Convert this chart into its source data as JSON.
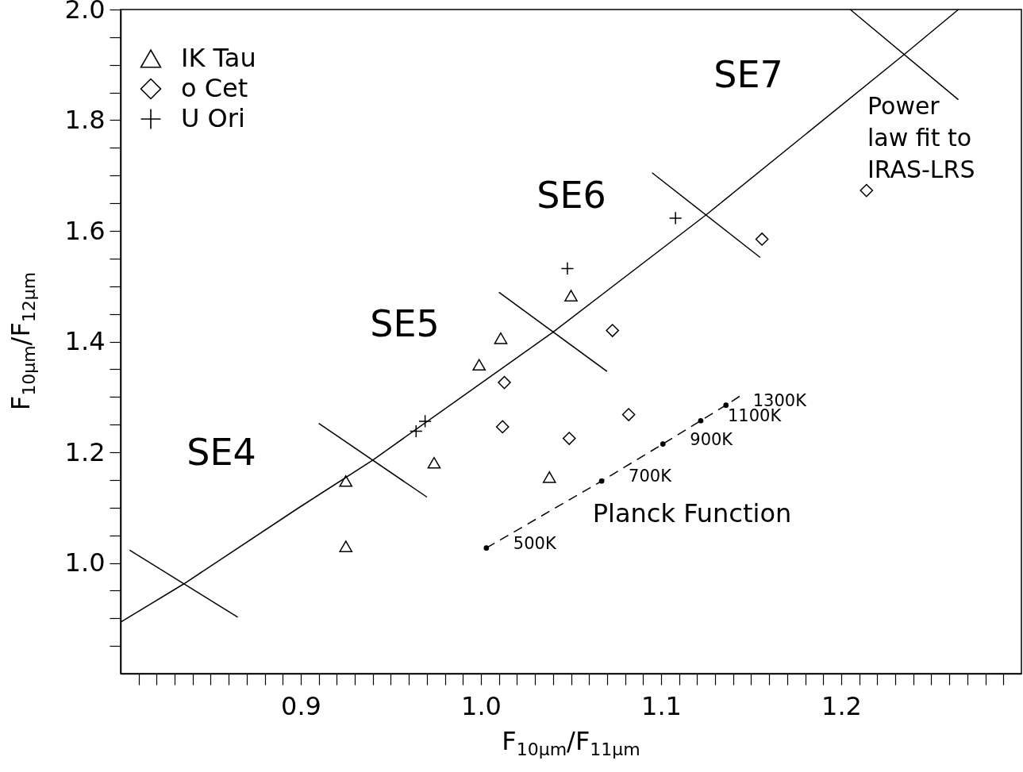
{
  "chart_data": {
    "type": "scatter",
    "xlabel": "F$_{10μm}$/F$_{11μm}$",
    "ylabel": "F$_{10μm}$/F$_{12μm}$",
    "xlim": [
      0.8,
      1.3
    ],
    "ylim": [
      0.8,
      2.0
    ],
    "xticks": [
      {
        "value": 0.81,
        "label": null
      },
      {
        "value": 0.82,
        "label": null
      },
      {
        "value": 0.83,
        "label": null
      },
      {
        "value": 0.84,
        "label": null
      },
      {
        "value": 0.85,
        "label": null
      },
      {
        "value": 0.86,
        "label": null
      },
      {
        "value": 0.87,
        "label": null
      },
      {
        "value": 0.88,
        "label": null
      },
      {
        "value": 0.89,
        "label": null
      },
      0.9,
      {
        "value": 0.91,
        "label": null
      },
      {
        "value": 0.92,
        "label": null
      },
      {
        "value": 0.93,
        "label": null
      },
      {
        "value": 0.94,
        "label": null
      },
      {
        "value": 0.95,
        "label": null
      },
      {
        "value": 0.96,
        "label": null
      },
      {
        "value": 0.97,
        "label": null
      },
      {
        "value": 0.98,
        "label": null
      },
      {
        "value": 0.99,
        "label": null
      },
      {
        "value": 1,
        "label": "1.0"
      },
      {
        "value": 1.01,
        "label": null
      },
      {
        "value": 1.02,
        "label": null
      },
      {
        "value": 1.03,
        "label": null
      },
      {
        "value": 1.04,
        "label": null
      },
      {
        "value": 1.05,
        "label": null
      },
      {
        "value": 1.06,
        "label": null
      },
      {
        "value": 1.07,
        "label": null
      },
      {
        "value": 1.08,
        "label": null
      },
      {
        "value": 1.09,
        "label": null
      },
      1.1,
      {
        "value": 1.11,
        "label": null
      },
      {
        "value": 1.12,
        "label": null
      },
      {
        "value": 1.13,
        "label": null
      },
      {
        "value": 1.14,
        "label": null
      },
      {
        "value": 1.15,
        "label": null
      },
      {
        "value": 1.16,
        "label": null
      },
      {
        "value": 1.17,
        "label": null
      },
      {
        "value": 1.18,
        "label": null
      },
      {
        "value": 1.19,
        "label": null
      },
      1.2,
      {
        "value": 1.21,
        "label": null
      },
      {
        "value": 1.22,
        "label": null
      },
      {
        "value": 1.23,
        "label": null
      },
      {
        "value": 1.24,
        "label": null
      },
      {
        "value": 1.25,
        "label": null
      },
      {
        "value": 1.26,
        "label": null
      },
      {
        "value": 1.27,
        "label": null
      },
      {
        "value": 1.28,
        "label": null
      },
      {
        "value": 1.29,
        "label": null
      }
    ],
    "yticks": [
      {
        "value": 0.85,
        "label": null
      },
      {
        "value": 0.9,
        "label": null
      },
      {
        "value": 0.95,
        "label": null
      },
      {
        "value": 1,
        "label": "1.0"
      },
      {
        "value": 1.05,
        "label": null
      },
      {
        "value": 1.1,
        "label": null
      },
      {
        "value": 1.15,
        "label": null
      },
      1.2,
      {
        "value": 1.25,
        "label": null
      },
      {
        "value": 1.3,
        "label": null
      },
      {
        "value": 1.35,
        "label": null
      },
      1.4,
      {
        "value": 1.45,
        "label": null
      },
      {
        "value": 1.5,
        "label": null
      },
      {
        "value": 1.55,
        "label": null
      },
      1.6,
      {
        "value": 1.65,
        "label": null
      },
      {
        "value": 1.7,
        "label": null
      },
      {
        "value": 1.75,
        "label": null
      },
      1.8,
      {
        "value": 1.85,
        "label": null
      },
      {
        "value": 1.9,
        "label": null
      },
      {
        "value": 1.95,
        "label": null
      },
      {
        "value": 2,
        "label": "2.0"
      }
    ],
    "grid": false,
    "legend": "top left",
    "series": [
      {
        "name": "IK Tau",
        "marker": "triangle",
        "color": "#000000",
        "x": [
          0.925,
          0.925,
          0.974,
          0.999,
          1.011,
          1.038,
          1.05
        ],
        "values": [
          1.148,
          1.03,
          1.181,
          1.358,
          1.406,
          1.155,
          1.483
        ]
      },
      {
        "name": "o Cet",
        "marker": "diamond",
        "color": "#000000",
        "x": [
          1.012,
          1.013,
          1.049,
          1.073,
          1.082,
          1.156,
          1.214
        ],
        "values": [
          1.246,
          1.326,
          1.225,
          1.42,
          1.268,
          1.585,
          1.673
        ]
      },
      {
        "name": "U Ori",
        "marker": "cross",
        "color": "#000000",
        "x": [
          0.964,
          0.969,
          1.048,
          1.108
        ],
        "values": [
          1.238,
          1.256,
          1.532,
          1.623
        ]
      },
      {
        "type": "line",
        "marker": "none",
        "line_style": "solid",
        "color": "#000000",
        "x": [
          0.8,
          0.835,
          0.899,
          0.94,
          1.04,
          1.125,
          1.235,
          1.265
        ],
        "values": [
          0.893,
          0.962,
          1.1,
          1.186,
          1.417,
          1.629,
          1.919,
          2.0
        ]
      },
      {
        "type": "line",
        "marker": "none",
        "line_style": "solid",
        "color": "#000000",
        "x": [
          0.805,
          0.865
        ],
        "values": [
          1.023,
          0.902
        ]
      },
      {
        "type": "line",
        "marker": "none",
        "line_style": "solid",
        "color": "#000000",
        "x": [
          0.91,
          0.97
        ],
        "values": [
          1.252,
          1.119
        ]
      },
      {
        "type": "line",
        "marker": "none",
        "line_style": "solid",
        "color": "#000000",
        "x": [
          1.01,
          1.07
        ],
        "values": [
          1.489,
          1.346
        ]
      },
      {
        "type": "line",
        "marker": "none",
        "line_style": "solid",
        "color": "#000000",
        "x": [
          1.095,
          1.155
        ],
        "values": [
          1.705,
          1.552
        ]
      },
      {
        "type": "line",
        "marker": "none",
        "line_style": "solid",
        "color": "#000000",
        "x": [
          1.205,
          1.265
        ],
        "values": [
          2.0,
          1.837
        ]
      },
      {
        "type": "line",
        "marker": "none",
        "line_style": "dashed",
        "color": "#000000",
        "x": [
          1.003,
          1.067,
          1.101,
          1.122,
          1.136,
          1.144
        ],
        "values": [
          1.027,
          1.148,
          1.215,
          1.257,
          1.285,
          1.302
        ]
      },
      {
        "marker": "circle",
        "color": "#000000",
        "x": [
          1.003,
          1.067,
          1.101,
          1.122,
          1.136
        ],
        "values": [
          1.027,
          1.148,
          1.215,
          1.257,
          1.285
        ]
      }
    ],
    "annotations": [
      "SE4",
      "SE5",
      "SE6",
      "SE7",
      "Power\nlaw fit to\nIRAS-LRS",
      "Planck Function",
      {
        "text": "500K",
        "x": 1.003,
        "y": 1.027
      },
      {
        "text": "700K",
        "x": 1.067,
        "y": 1.148
      },
      {
        "text": "900K",
        "x": 1.101,
        "y": 1.215
      },
      {
        "text": "1100K",
        "x": 1.122,
        "y": 1.257
      },
      {
        "text": "1300K",
        "x": 1.136,
        "y": 1.285
      }
    ]
  }
}
